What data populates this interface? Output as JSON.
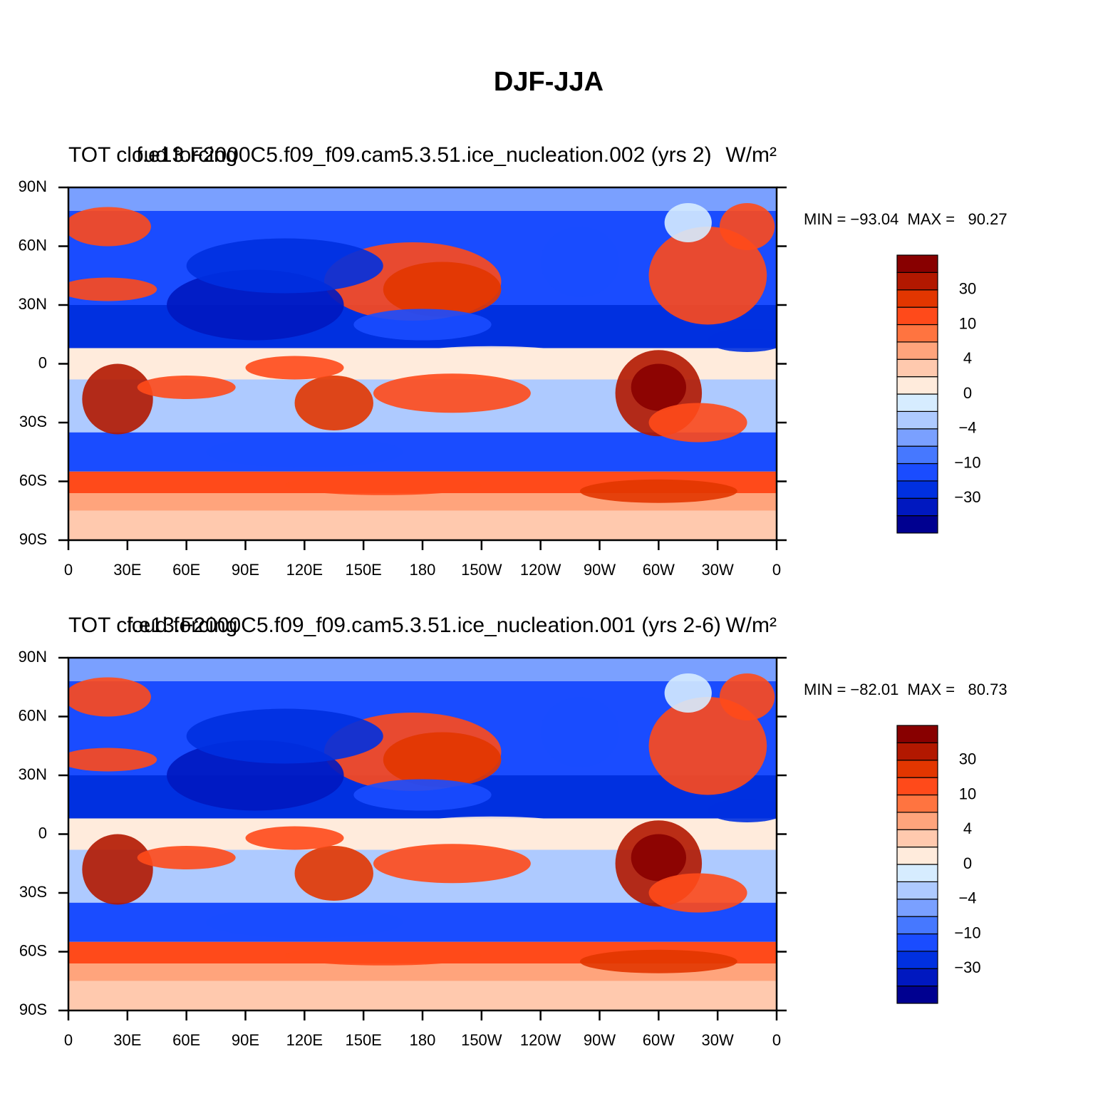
{
  "title": "DJF-JJA",
  "panels": [
    {
      "left_string": "TOT cloud forcing",
      "center_string": "f.e13.F2000C5.f09_f09.cam5.3.51.ice_nucleation.002 (yrs 2)",
      "right_string": "W/m²",
      "stats": "MIN = −93.04  MAX =   90.27",
      "lat_ticks": [
        {
          "value": 90,
          "label": "90N"
        },
        {
          "value": 60,
          "label": "60N"
        },
        {
          "value": 30,
          "label": "30N"
        },
        0,
        {
          "value": -30,
          "label": "30S"
        },
        {
          "value": -60,
          "label": "60S"
        },
        {
          "value": -90,
          "label": "90S"
        }
      ],
      "lon_ticks": [
        0,
        {
          "value": 30,
          "label": "30E"
        },
        {
          "value": 60,
          "label": "60E"
        },
        {
          "value": 90,
          "label": "90E"
        },
        {
          "value": 120,
          "label": "120E"
        },
        {
          "value": 150,
          "label": "150E"
        },
        180,
        {
          "value": 210,
          "label": "150W"
        },
        {
          "value": 240,
          "label": "120W"
        },
        {
          "value": 270,
          "label": "90W"
        },
        {
          "value": 300,
          "label": "60W"
        },
        {
          "value": 330,
          "label": "30W"
        },
        {
          "value": 360,
          "label": "0"
        }
      ],
      "colorbar": {
        "levels": [
          -40,
          -30,
          -20,
          -10,
          -6,
          -4,
          -2,
          0,
          2,
          4,
          6,
          10,
          20,
          30,
          40
        ],
        "colors": [
          "#000090",
          "#0018c0",
          "#0030e0",
          "#1a4cff",
          "#4678ff",
          "#7aa0ff",
          "#aecaff",
          "#d6ecff",
          "#ffebdc",
          "#ffc9ae",
          "#ffa47c",
          "#ff7440",
          "#ff4a1a",
          "#e23600",
          "#b21800",
          "#880000"
        ],
        "labels": [
          30,
          10,
          4,
          0,
          {
            "value": -4,
            "label": "−4"
          },
          {
            "value": -10,
            "label": "−10"
          },
          {
            "value": -30,
            "label": "−30"
          }
        ]
      }
    },
    {
      "left_string": "TOT cloud forcing",
      "center_string": "f.e13.F2000C5.f09_f09.cam5.3.51.ice_nucleation.001 (yrs 2-6)",
      "right_string": "W/m²",
      "stats": "MIN = −82.01  MAX =   80.73",
      "lat_ticks": [
        {
          "value": 90,
          "label": "90N"
        },
        {
          "value": 60,
          "label": "60N"
        },
        {
          "value": 30,
          "label": "30N"
        },
        0,
        {
          "value": -30,
          "label": "30S"
        },
        {
          "value": -60,
          "label": "60S"
        },
        {
          "value": -90,
          "label": "90S"
        }
      ],
      "lon_ticks": [
        0,
        {
          "value": 30,
          "label": "30E"
        },
        {
          "value": 60,
          "label": "60E"
        },
        {
          "value": 90,
          "label": "90E"
        },
        {
          "value": 120,
          "label": "120E"
        },
        {
          "value": 150,
          "label": "150E"
        },
        180,
        {
          "value": 210,
          "label": "150W"
        },
        {
          "value": 240,
          "label": "120W"
        },
        {
          "value": 270,
          "label": "90W"
        },
        {
          "value": 300,
          "label": "60W"
        },
        {
          "value": 330,
          "label": "30W"
        },
        {
          "value": 360,
          "label": "0"
        }
      ],
      "colorbar": {
        "levels": [
          -40,
          -30,
          -20,
          -10,
          -6,
          -4,
          -2,
          0,
          2,
          4,
          6,
          10,
          20,
          30,
          40
        ],
        "colors": [
          "#000090",
          "#0018c0",
          "#0030e0",
          "#1a4cff",
          "#4678ff",
          "#7aa0ff",
          "#aecaff",
          "#d6ecff",
          "#ffebdc",
          "#ffc9ae",
          "#ffa47c",
          "#ff7440",
          "#ff4a1a",
          "#e23600",
          "#b21800",
          "#880000"
        ],
        "labels": [
          30,
          10,
          4,
          0,
          {
            "value": -4,
            "label": "−4"
          },
          {
            "value": -10,
            "label": "−10"
          },
          {
            "value": -30,
            "label": "−30"
          }
        ]
      }
    }
  ]
}
